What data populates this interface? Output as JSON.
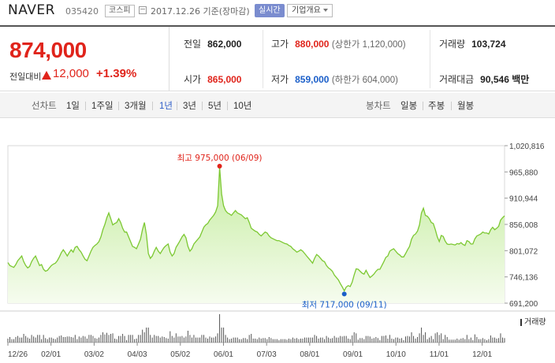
{
  "header": {
    "name": "NAVER",
    "code": "035420",
    "market": "코스피",
    "date": "2017.12.26 기준(장마감)",
    "live_label": "실시간",
    "corp_label": "기업개요"
  },
  "price": {
    "current": "874,000",
    "change_label": "전일대비",
    "change": "12,000",
    "change_pct": "+1.39%",
    "direction": "up"
  },
  "stats": {
    "prev_close_label": "전일",
    "prev_close": "862,000",
    "high_label": "고가",
    "high": "880,000",
    "upper_limit": "(상한가 1,120,000)",
    "volume_label": "거래량",
    "volume": "103,724",
    "open_label": "시가",
    "open": "865,000",
    "low_label": "저가",
    "low": "859,000",
    "lower_limit": "(하한가 604,000)",
    "value_label": "거래대금",
    "value": "90,546",
    "value_unit": "백만"
  },
  "tabs": {
    "line_group": "선차트",
    "line_items": [
      "1일",
      "1주일",
      "3개월",
      "1년",
      "3년",
      "5년",
      "10년"
    ],
    "active": "1년",
    "candle_group": "봉차트",
    "candle_items": [
      "일봉",
      "주봉",
      "월봉"
    ]
  },
  "colors": {
    "up": "#e0241b",
    "down": "#1b5fc9",
    "line": "#7cc832",
    "accent": "#2e5ec8"
  },
  "chart_data": {
    "type": "area",
    "y_ticks": [
      "1,020,816",
      "965,880",
      "910,944",
      "856,008",
      "801,072",
      "746,136",
      "691,200"
    ],
    "ylim": [
      691200,
      1020816
    ],
    "x_ticks": [
      "12/26",
      "02/01",
      "03/02",
      "04/03",
      "05/02",
      "06/01",
      "07/03",
      "08/01",
      "09/01",
      "10/10",
      "11/01",
      "12/01"
    ],
    "max_label": "최고 975,000 (06/09)",
    "min_label": "최저 717,000 (09/11)",
    "max_index": 107,
    "min_index": 170,
    "values": [
      776000,
      770000,
      768000,
      766000,
      772000,
      780000,
      785000,
      790000,
      778000,
      770000,
      765000,
      768000,
      778000,
      785000,
      790000,
      780000,
      770000,
      772000,
      762000,
      758000,
      760000,
      765000,
      770000,
      773000,
      775000,
      780000,
      788000,
      797000,
      803000,
      797000,
      790000,
      797000,
      803000,
      798000,
      808000,
      810000,
      803000,
      798000,
      790000,
      783000,
      780000,
      790000,
      800000,
      808000,
      812000,
      815000,
      820000,
      830000,
      845000,
      856000,
      870000,
      880000,
      868000,
      855000,
      858000,
      860000,
      868000,
      860000,
      848000,
      840000,
      840000,
      830000,
      820000,
      810000,
      808000,
      805000,
      815000,
      825000,
      845000,
      860000,
      835000,
      795000,
      785000,
      790000,
      800000,
      808000,
      800000,
      795000,
      802000,
      808000,
      812000,
      815000,
      798000,
      790000,
      795000,
      808000,
      815000,
      822000,
      830000,
      835000,
      828000,
      810000,
      800000,
      805000,
      815000,
      820000,
      825000,
      830000,
      840000,
      850000,
      855000,
      858000,
      865000,
      870000,
      875000,
      882000,
      895000,
      975000,
      920000,
      895000,
      885000,
      880000,
      878000,
      875000,
      880000,
      885000,
      880000,
      878000,
      876000,
      872000,
      868000,
      870000,
      860000,
      848000,
      845000,
      842000,
      840000,
      835000,
      832000,
      836000,
      840000,
      838000,
      832000,
      828000,
      826000,
      824000,
      822000,
      822000,
      820000,
      818000,
      816000,
      815000,
      812000,
      810000,
      805000,
      802000,
      798000,
      800000,
      803000,
      800000,
      795000,
      790000,
      785000,
      780000,
      775000,
      785000,
      793000,
      790000,
      785000,
      780000,
      778000,
      770000,
      765000,
      762000,
      758000,
      750000,
      745000,
      740000,
      732000,
      725000,
      717000,
      725000,
      728000,
      726000,
      735000,
      750000,
      763000,
      762000,
      758000,
      754000,
      752000,
      760000,
      752000,
      745000,
      748000,
      752000,
      758000,
      762000,
      762000,
      770000,
      778000,
      787000,
      790000,
      800000,
      803000,
      805000,
      800000,
      795000,
      792000,
      788000,
      788000,
      795000,
      803000,
      810000,
      825000,
      833000,
      836000,
      842000,
      855000,
      880000,
      890000,
      875000,
      873000,
      868000,
      860000,
      858000,
      845000,
      830000,
      820000,
      833000,
      831000,
      821000,
      815000,
      814000,
      815000,
      814000,
      813000,
      816000,
      815000,
      818000,
      814000,
      812000,
      822000,
      820000,
      815000,
      815000,
      826000,
      832000,
      834000,
      836000,
      840000,
      838000,
      838000,
      836000,
      845000,
      850000,
      845000,
      848000,
      852000,
      865000,
      870000,
      874000
    ]
  }
}
